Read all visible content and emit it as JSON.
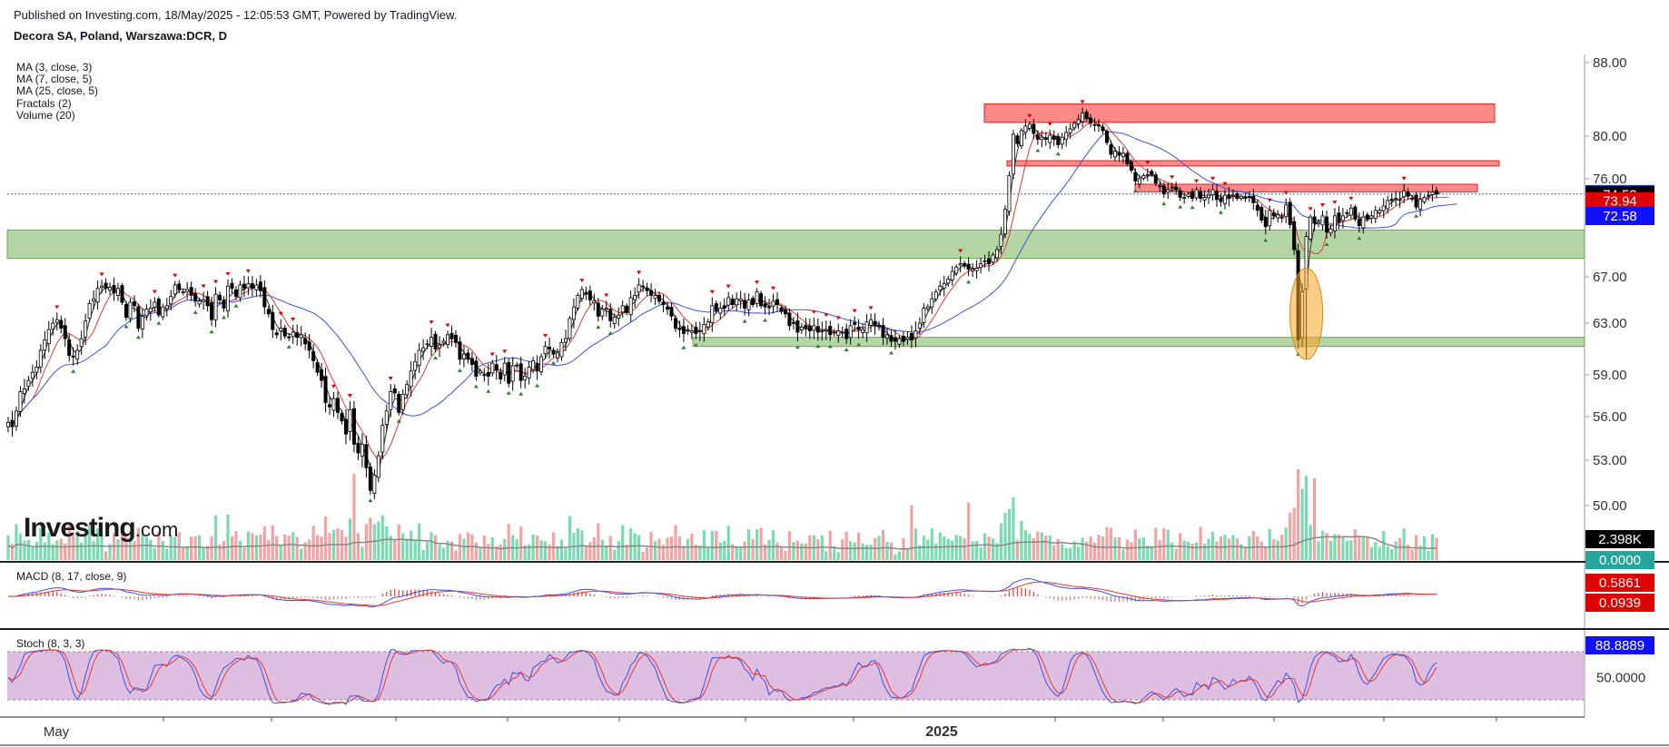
{
  "header": {
    "published": "Published on Investing.com, 18/May/2025 - 12:05:53 GMT, Powered by TradingView.",
    "symbol": "Decora SA, Poland, Warszawa:DCR, D"
  },
  "studies": [
    "MA (3, close, 3)",
    "MA (7, close, 5)",
    "MA (25, close, 5)",
    "Fractals (2)",
    "Volume (20)"
  ],
  "logo": {
    "main": "Investing",
    "suffix": ".com"
  },
  "colors": {
    "up": "#ffffff",
    "down": "#000000",
    "ma_fast": "#333333",
    "ma_mid": "#e53935",
    "ma_slow": "#3f51e3",
    "resistance": "#ff6b6b",
    "support": "#93c47d",
    "highlight": "#f6a623",
    "vol_up": "#56d39f",
    "vol_down": "#f28b8b",
    "stoch_band": "#d8b4dc"
  },
  "chart_data": [
    {
      "type": "candlestick",
      "title": "Decora SA, Poland, Warszawa:DCR, D",
      "x_labels": [
        "May",
        "2025"
      ],
      "y_ticks": [
        "88.00",
        "80.00",
        "76.00",
        "67.00",
        "63.00",
        "59.00",
        "56.00",
        "53.00",
        "50.00"
      ],
      "price_labels": [
        {
          "value": "74.60",
          "color": "#2962ff",
          "text_color": "#ffffff"
        },
        {
          "value": "74.53",
          "color": "#000000",
          "text_color": "#ffffff"
        },
        {
          "value": "73.94",
          "color": "#e00000",
          "text_color": "#ffffff"
        },
        {
          "value": "72.58",
          "color": "#1010ff",
          "text_color": "#ffffff"
        }
      ],
      "close_series": [
        55.6,
        55.3,
        56.4,
        57.8,
        58.0,
        58.6,
        59.2,
        59.6,
        60.9,
        61.7,
        62.5,
        63.0,
        63.3,
        62.6,
        61.8,
        60.5,
        60.4,
        60.9,
        61.8,
        63.2,
        64.7,
        65.1,
        66.0,
        66.2,
        66.0,
        66.1,
        65.6,
        66.0,
        64.8,
        63.5,
        64.8,
        64.5,
        62.6,
        63.6,
        64.2,
        64.3,
        64.8,
        63.7,
        64.4,
        64.5,
        65.3,
        66.3,
        65.9,
        65.7,
        65.9,
        65.4,
        64.9,
        64.9,
        65.0,
        64.5,
        63.3,
        65.5,
        65.0,
        64.3,
        66.2,
        66.0,
        65.3,
        66.3,
        66.0,
        66.4,
        66.0,
        66.3,
        65.8,
        64.4,
        63.8,
        62.5,
        62.1,
        62.6,
        62.0,
        61.9,
        62.3,
        61.9,
        62.1,
        61.4,
        60.9,
        60.1,
        59.2,
        58.6,
        57.0,
        56.7,
        57.3,
        56.3,
        55.7,
        54.8,
        56.5,
        54.1,
        53.5,
        54.1,
        52.5,
        51.0,
        52.0,
        53.3,
        55.4,
        56.4,
        57.8,
        57.7,
        56.3,
        57.6,
        58.3,
        59.3,
        60.0,
        60.9,
        61.1,
        61.4,
        61.9,
        61.0,
        61.3,
        61.6,
        62.1,
        61.8,
        61.5,
        60.2,
        60.6,
        60.2,
        59.8,
        58.9,
        59.3,
        59.0,
        58.9,
        59.9,
        59.4,
        58.7,
        59.9,
        58.4,
        59.7,
        59.7,
        58.6,
        58.9,
        59.6,
        60.1,
        59.3,
        60.4,
        61.2,
        61.0,
        60.6,
        60.7,
        61.5,
        61.8,
        63.4,
        64.4,
        65.4,
        65.9,
        65.5,
        65.0,
        64.9,
        63.6,
        64.2,
        64.3,
        63.2,
        63.5,
        63.7,
        64.5,
        63.9,
        65.2,
        65.4,
        66.3,
        66.2,
        65.8,
        65.4,
        65.4,
        64.9,
        64.6,
        64.2,
        63.6,
        62.6,
        62.5,
        62.2,
        62.5,
        62.4,
        62.2,
        62.4,
        62.9,
        63.1,
        64.5,
        64.1,
        64.3,
        64.3,
        65.2,
        64.6,
        65.1,
        65.1,
        64.3,
        65.0,
        64.6,
        65.7,
        64.5,
        64.4,
        64.4,
        64.9,
        64.6,
        64.0,
        63.8,
        62.8,
        63.0,
        62.3,
        62.7,
        62.6,
        62.4,
        62.8,
        62.3,
        62.4,
        62.5,
        62.1,
        62.3,
        62.4,
        62.3,
        61.8,
        62.8,
        62.9,
        62.5,
        62.5,
        63.1,
        63.3,
        62.8,
        62.8,
        61.9,
        62.1,
        61.6,
        61.6,
        61.8,
        61.6,
        61.9,
        61.7,
        62.4,
        63.0,
        64.3,
        64.4,
        65.1,
        65.7,
        66.2,
        66.4,
        66.8,
        67.5,
        67.9,
        68.2,
        68.0,
        67.7,
        67.7,
        67.8,
        68.2,
        68.4,
        68.2,
        69.0,
        69.5,
        70.9,
        73.2,
        76.3,
        80.2,
        79.3,
        80.6,
        81.1,
        81.3,
        80.3,
        79.7,
        79.9,
        79.7,
        80.1,
        79.7,
        79.2,
        79.9,
        80.4,
        80.8,
        81.4,
        81.8,
        82.5,
        81.9,
        81.4,
        81.2,
        81.1,
        80.6,
        79.4,
        78.3,
        78.6,
        78.2,
        78.4,
        77.4,
        76.8,
        75.8,
        76.0,
        76.3,
        76.4,
        76.4,
        75.6,
        75.3,
        74.6,
        75.0,
        75.2,
        75.0,
        74.3,
        74.3,
        74.6,
        74.2,
        75.0,
        74.2,
        74.3,
        74.5,
        75.0,
        74.1,
        73.9,
        74.5,
        74.2,
        74.5,
        74.2,
        74.4,
        74.2,
        74.3,
        73.8,
        73.1,
        72.2,
        71.6,
        73.1,
        72.6,
        72.7,
        72.4,
        73.6,
        71.8,
        69.5,
        61.7,
        65.7,
        70.7,
        72.5,
        71.9,
        72.0,
        72.6,
        71.1,
        71.4,
        72.6,
        72.0,
        72.6,
        72.8,
        73.3,
        72.3,
        71.7,
        72.5,
        72.3,
        72.6,
        73.1,
        73.1,
        73.5,
        74.0,
        74.0,
        74.2,
        74.1,
        74.9,
        74.4,
        74.2,
        73.4,
        74.1,
        74.3,
        74.5,
        74.8,
        74.6
      ],
      "moving_averages": [
        {
          "name": "MA (3, close, 3)",
          "color": "#333333"
        },
        {
          "name": "MA (7, close, 5)",
          "color": "#e53935"
        },
        {
          "name": "MA (25, close, 5)",
          "color": "#3f51e3"
        }
      ],
      "resistance_zones": [
        {
          "from": 81.5,
          "to": 83.5
        },
        {
          "from": 77.2,
          "to": 77.7
        },
        {
          "from": 74.8,
          "to": 75.5
        }
      ],
      "support_zones": [
        {
          "from": 68.7,
          "to": 71.3
        },
        {
          "from": 61.2,
          "to": 61.9
        }
      ],
      "highlight": {
        "low": 60.2,
        "high": 67.8
      },
      "grid": false,
      "legend_position": "top-left"
    },
    {
      "type": "bar",
      "title": "Volume (20)",
      "value_labels": [
        {
          "value": "2.398K",
          "color": "#000000",
          "text_color": "#ffffff"
        },
        {
          "value": "0.0000",
          "color": "#26a69a",
          "text_color": "#ffffff"
        }
      ]
    },
    {
      "type": "line",
      "title": "MACD (8, 17, close, 9)",
      "series": [
        {
          "name": "MACD",
          "color": "#3f51e3"
        },
        {
          "name": "Signal",
          "color": "#e53935"
        },
        {
          "name": "Histogram",
          "color": "#e53935"
        }
      ],
      "value_labels": [
        {
          "value": "0.5861",
          "color": "#e00000",
          "text_color": "#ffffff"
        },
        {
          "value": "0.0939",
          "color": "#e00000",
          "text_color": "#ffffff"
        }
      ]
    },
    {
      "type": "line",
      "title": "Stoch (8, 3, 3)",
      "series": [
        {
          "name": "%K",
          "color": "#3f51e3"
        },
        {
          "name": "%D",
          "color": "#e53935"
        }
      ],
      "band": [
        20,
        80
      ],
      "y_ticks": [
        "50.0000"
      ],
      "value_labels": [
        {
          "value": "88.8889",
          "color": "#1010ff",
          "text_color": "#ffffff"
        }
      ]
    }
  ]
}
